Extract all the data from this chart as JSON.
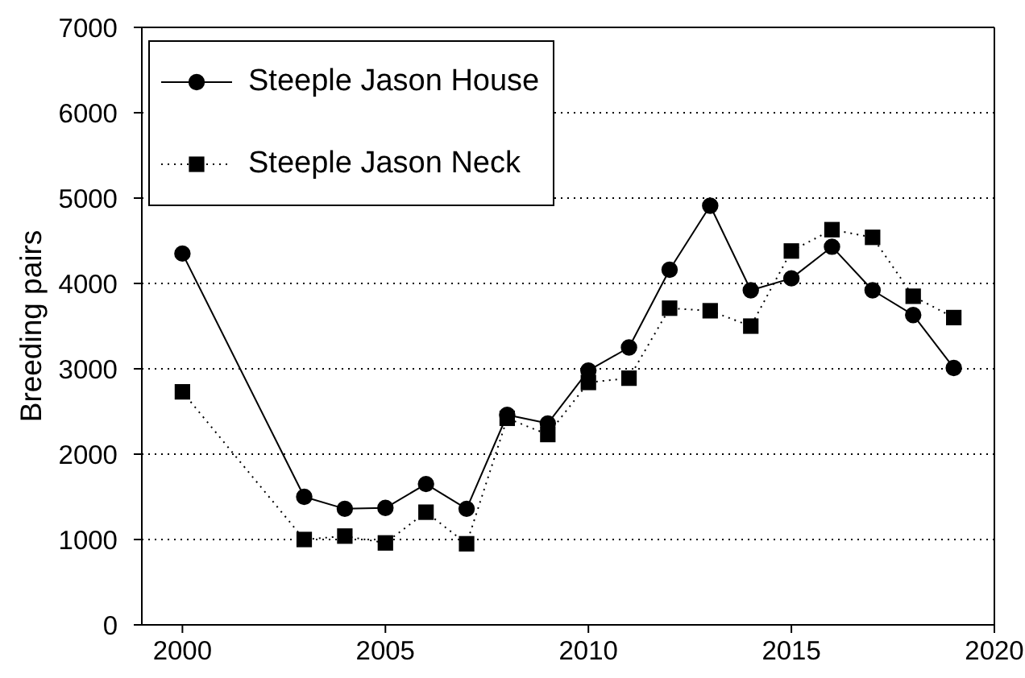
{
  "chart_data": {
    "type": "line",
    "ylabel": "Breeding pairs",
    "x": [
      2000,
      2003,
      2004,
      2005,
      2006,
      2007,
      2008,
      2009,
      2010,
      2011,
      2012,
      2013,
      2014,
      2015,
      2016,
      2017,
      2018,
      2019
    ],
    "xlim": [
      1999,
      2020
    ],
    "xticks": [
      2000,
      2005,
      2010,
      2015,
      2020
    ],
    "ylim": [
      0,
      7000
    ],
    "yticks": [
      0,
      1000,
      2000,
      3000,
      4000,
      5000,
      6000,
      7000
    ],
    "grid": "y",
    "legend": "top left",
    "series": [
      {
        "name": "Steeple Jason House",
        "color": "#000000",
        "marker": "circle",
        "line_style": "solid",
        "values": [
          4350,
          1500,
          1360,
          1370,
          1650,
          1360,
          2460,
          2360,
          2980,
          3250,
          4160,
          4910,
          3920,
          4060,
          4430,
          3920,
          3630,
          3010
        ]
      },
      {
        "name": "Steeple Jason Neck",
        "color": "#000000",
        "marker": "square",
        "line_style": "dotted",
        "values": [
          2730,
          1000,
          1040,
          960,
          1320,
          950,
          2420,
          2230,
          2840,
          2890,
          3710,
          3680,
          3500,
          4380,
          4630,
          4540,
          3850,
          3600
        ]
      }
    ]
  }
}
